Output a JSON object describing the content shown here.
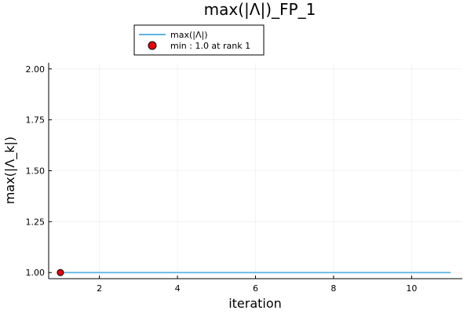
{
  "chart_data": {
    "type": "line",
    "title": "max(|Λ|)_FP_1",
    "xlabel": "iteration",
    "ylabel": "max(|Λ_k|)",
    "xlim": [
      0.7,
      11.3
    ],
    "ylim": [
      0.97,
      2.03
    ],
    "x_ticks": [
      2,
      4,
      6,
      8,
      10
    ],
    "y_ticks": [
      1.0,
      1.25,
      1.5,
      1.75,
      2.0
    ],
    "x_tick_labels": [
      "2",
      "4",
      "6",
      "8",
      "10"
    ],
    "y_tick_labels": [
      "1.00",
      "1.25",
      "1.50",
      "1.75",
      "2.00"
    ],
    "grid": true,
    "legend_position": "top-outside",
    "series": [
      {
        "name": "max(|Λ|)",
        "kind": "line",
        "color": "#5ab4e5",
        "x": [
          1,
          2,
          3,
          4,
          5,
          6,
          7,
          8,
          9,
          10,
          11
        ],
        "y": [
          1.0,
          1.0,
          1.0,
          1.0,
          1.0,
          1.0,
          1.0,
          1.0,
          1.0,
          1.0,
          1.0
        ]
      },
      {
        "name": "min : 1.0 at rank 1",
        "kind": "scatter",
        "color": "#e8000b",
        "x": [
          1
        ],
        "y": [
          1.0
        ]
      }
    ]
  }
}
